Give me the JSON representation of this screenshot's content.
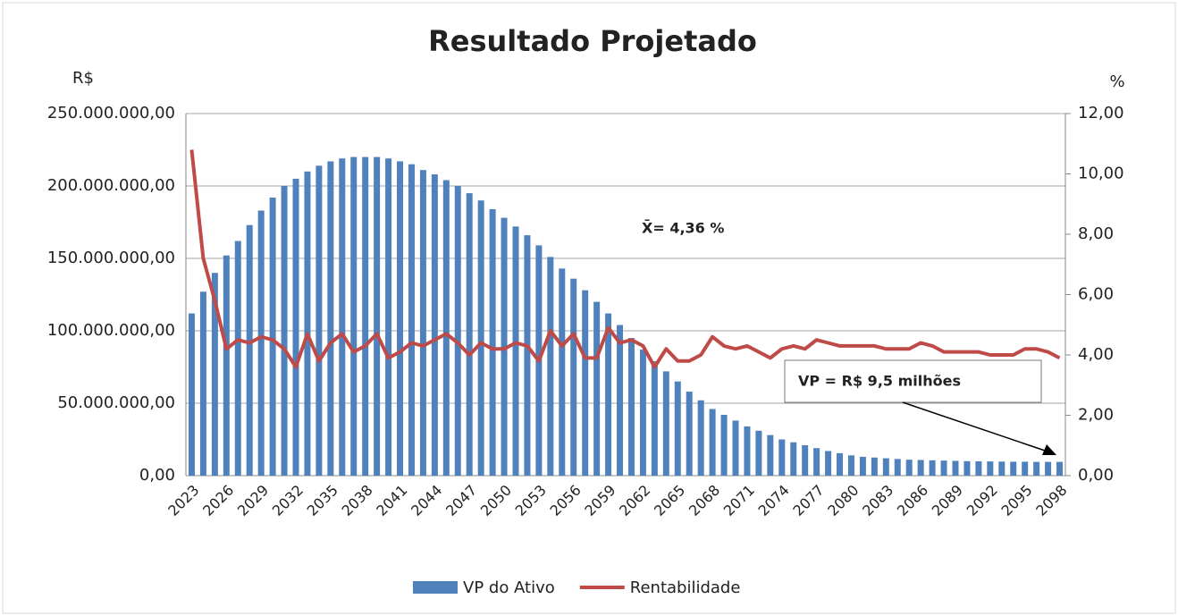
{
  "chart_data": {
    "type": "bar-line",
    "title": "Resultado Projetado",
    "y_axis_label": "R$",
    "y2_axis_label": "%",
    "annotations": [
      "X̄= 4,36 %",
      "VP = R$ 9,5 milhões"
    ],
    "categories": [
      "2023",
      null,
      null,
      "2026",
      null,
      null,
      "2029",
      null,
      null,
      "2032",
      null,
      null,
      "2035",
      null,
      null,
      "2038",
      null,
      null,
      "2041",
      null,
      null,
      "2044",
      null,
      null,
      "2047",
      null,
      null,
      "2050",
      null,
      null,
      "2053",
      null,
      null,
      "2056",
      null,
      null,
      "2059",
      null,
      null,
      "2062",
      null,
      null,
      "2065",
      null,
      null,
      "2068",
      null,
      null,
      "2071",
      null,
      null,
      "2074",
      null,
      null,
      "2077",
      null,
      null,
      "2080",
      null,
      null,
      "2083",
      null,
      null,
      "2086",
      null,
      null,
      "2089",
      null,
      null,
      "2092",
      null,
      null,
      "2095",
      null,
      null,
      "2098"
    ],
    "series": [
      {
        "name": "VP do Ativo",
        "type": "bar",
        "color": "#4f81bd",
        "values": [
          112000000,
          127000000,
          140000000,
          152000000,
          162000000,
          173000000,
          183000000,
          192000000,
          200000000,
          205000000,
          210000000,
          214000000,
          217000000,
          219000000,
          220000000,
          220000000,
          220000000,
          219000000,
          217000000,
          215000000,
          211000000,
          208000000,
          204000000,
          200000000,
          195000000,
          190000000,
          184000000,
          178000000,
          172000000,
          166000000,
          159000000,
          151000000,
          143000000,
          136000000,
          128000000,
          120000000,
          112000000,
          104000000,
          95000000,
          87000000,
          79000000,
          72000000,
          65000000,
          58000000,
          52000000,
          46000000,
          42000000,
          38000000,
          34000000,
          31000000,
          28000000,
          25000000,
          23000000,
          21000000,
          19000000,
          17000000,
          15500000,
          14000000,
          13000000,
          12500000,
          12000000,
          11500000,
          11000000,
          10800000,
          10600000,
          10400000,
          10200000,
          10000000,
          9900000,
          9800000,
          9700000,
          9600000,
          9600000,
          9500000,
          9500000,
          9500000
        ]
      },
      {
        "name": "Rentabilidade",
        "type": "line",
        "axis": "y2",
        "color": "#be4b48",
        "values": [
          10.8,
          7.2,
          5.8,
          4.2,
          4.5,
          4.4,
          4.6,
          4.5,
          4.2,
          3.6,
          4.7,
          3.8,
          4.4,
          4.7,
          4.1,
          4.3,
          4.7,
          3.9,
          4.1,
          4.4,
          4.3,
          4.5,
          4.7,
          4.4,
          4.0,
          4.4,
          4.2,
          4.2,
          4.4,
          4.3,
          3.8,
          4.8,
          4.3,
          4.7,
          3.9,
          3.9,
          4.9,
          4.4,
          4.5,
          4.3,
          3.6,
          4.2,
          3.8,
          3.8,
          4.0,
          4.6,
          4.3,
          4.2,
          4.3,
          4.1,
          3.9,
          4.2,
          4.3,
          4.2,
          4.5,
          4.4,
          4.3,
          4.3,
          4.3,
          4.3,
          4.2,
          4.2,
          4.2,
          4.4,
          4.3,
          4.1,
          4.1,
          4.1,
          4.1,
          4.0,
          4.0,
          4.0,
          4.2,
          4.2,
          4.1,
          3.9
        ]
      }
    ],
    "ylim": [
      0,
      250000000
    ],
    "yticks": [
      {
        "value": 0,
        "label": "0,00"
      },
      {
        "value": 50000000,
        "label": "50.000.000,00"
      },
      {
        "value": 100000000,
        "label": "100.000.000,00"
      },
      {
        "value": 150000000,
        "label": "150.000.000,00"
      },
      {
        "value": 200000000,
        "label": "200.000.000,00"
      },
      {
        "value": 250000000,
        "label": "250.000.000,00"
      }
    ],
    "y2lim": [
      0,
      12
    ],
    "y2ticks": [
      {
        "value": 0,
        "label": "0,00"
      },
      {
        "value": 2,
        "label": "2,00"
      },
      {
        "value": 4,
        "label": "4,00"
      },
      {
        "value": 6,
        "label": "6,00"
      },
      {
        "value": 8,
        "label": "8,00"
      },
      {
        "value": 10,
        "label": "10,00"
      },
      {
        "value": 12,
        "label": "12,00"
      }
    ],
    "grid": true,
    "legend": "bottom"
  }
}
